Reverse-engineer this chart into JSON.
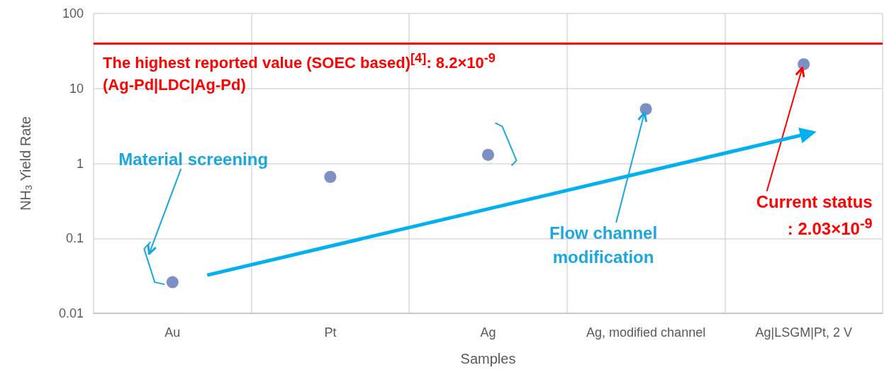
{
  "chart_data": {
    "type": "scatter",
    "xlabel": "Samples",
    "ylabel": "NH$_{3}$ Yield Rate",
    "categories": [
      "Au",
      "Pt",
      "Ag",
      "Ag, modified channel",
      "Ag|LSGM|Pt, 2 V"
    ],
    "series": [
      {
        "color": "#5b74b8",
        "values": [
          0.026,
          0.66,
          1.3,
          5.3,
          21
        ]
      }
    ],
    "log": "y",
    "ylim": [
      0.01,
      100
    ],
    "yticks": [
      0.01,
      0.1,
      1,
      10,
      100
    ],
    "grid": true,
    "marker": "circle",
    "ref_lines": [
      {
        "axis": "y",
        "value": 40,
        "color": "#ff0000"
      }
    ],
    "annotations": [
      "The highest reported value (SOEC based)$^{[4]}$: 8.2×10$^{-9}$\n(Ag-Pd|LDC|Ag-Pd)",
      "Material screening",
      {
        "text": "Flow channel\nmodification",
        "x": "Ag, modified channel",
        "y": 5.3
      },
      {
        "text": "Current status\n: 2.03×10$^{-9}$",
        "x": "Ag|LSGM|Pt, 2 V",
        "y": 21
      }
    ]
  }
}
